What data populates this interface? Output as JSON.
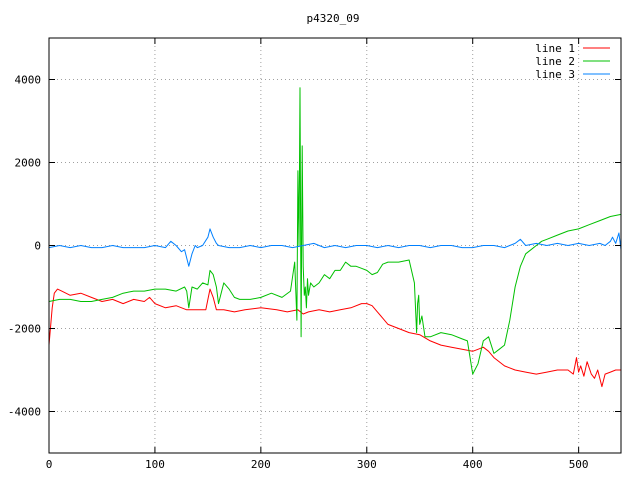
{
  "chart_data": {
    "type": "line",
    "title": "p4320_09",
    "xlabel": "",
    "ylabel": "",
    "xlim": [
      0,
      540
    ],
    "ylim": [
      -5000,
      5000
    ],
    "xticks": [
      0,
      100,
      200,
      300,
      400,
      500
    ],
    "yticks": [
      -4000,
      -2000,
      0,
      2000,
      4000
    ],
    "grid": true,
    "legend_position": "top-right",
    "series": [
      {
        "name": "line 1",
        "color": "#ff0000",
        "x": [
          0,
          3,
          5,
          8,
          12,
          20,
          30,
          40,
          50,
          60,
          70,
          80,
          90,
          95,
          100,
          110,
          120,
          130,
          140,
          148,
          150,
          152,
          155,
          158,
          165,
          175,
          185,
          200,
          215,
          225,
          235,
          240,
          245,
          255,
          265,
          275,
          285,
          295,
          300,
          305,
          310,
          320,
          330,
          340,
          350,
          360,
          370,
          380,
          390,
          400,
          405,
          410,
          415,
          420,
          430,
          440,
          450,
          460,
          470,
          480,
          490,
          495,
          498,
          500,
          502,
          505,
          508,
          512,
          515,
          518,
          522,
          525,
          530,
          535,
          540
        ],
        "y": [
          -2400,
          -1500,
          -1150,
          -1050,
          -1100,
          -1200,
          -1150,
          -1250,
          -1350,
          -1300,
          -1400,
          -1300,
          -1350,
          -1250,
          -1400,
          -1500,
          -1450,
          -1550,
          -1550,
          -1550,
          -1300,
          -1050,
          -1250,
          -1550,
          -1550,
          -1600,
          -1550,
          -1500,
          -1550,
          -1600,
          -1550,
          -1650,
          -1600,
          -1550,
          -1600,
          -1550,
          -1500,
          -1400,
          -1400,
          -1450,
          -1600,
          -1900,
          -2000,
          -2100,
          -2150,
          -2300,
          -2400,
          -2450,
          -2500,
          -2550,
          -2500,
          -2450,
          -2550,
          -2700,
          -2900,
          -3000,
          -3050,
          -3100,
          -3050,
          -3000,
          -3000,
          -3100,
          -2700,
          -3050,
          -2900,
          -3150,
          -2800,
          -3100,
          -3200,
          -3000,
          -3400,
          -3100,
          -3050,
          -3000,
          -3000
        ]
      },
      {
        "name": "line 2",
        "color": "#00c000",
        "x": [
          0,
          10,
          20,
          30,
          40,
          50,
          60,
          70,
          80,
          90,
          100,
          110,
          120,
          128,
          130,
          132,
          135,
          140,
          145,
          150,
          152,
          155,
          158,
          160,
          165,
          170,
          175,
          180,
          190,
          200,
          210,
          220,
          228,
          232,
          234,
          235,
          236,
          237,
          238,
          239,
          240,
          241,
          242,
          243,
          244,
          245,
          247,
          250,
          255,
          260,
          265,
          270,
          275,
          280,
          285,
          290,
          295,
          300,
          305,
          310,
          315,
          320,
          330,
          340,
          345,
          347,
          348,
          349,
          350,
          352,
          355,
          360,
          370,
          380,
          390,
          395,
          400,
          405,
          410,
          415,
          420,
          425,
          430,
          435,
          440,
          445,
          450,
          455,
          460,
          465,
          470,
          480,
          490,
          500,
          510,
          520,
          530,
          540
        ],
        "y": [
          -1350,
          -1300,
          -1300,
          -1350,
          -1350,
          -1300,
          -1250,
          -1150,
          -1100,
          -1100,
          -1050,
          -1050,
          -1100,
          -1000,
          -1100,
          -1500,
          -1000,
          -1050,
          -900,
          -950,
          -600,
          -700,
          -1000,
          -1400,
          -900,
          -1050,
          -1250,
          -1300,
          -1300,
          -1250,
          -1150,
          -1250,
          -1100,
          -400,
          -1800,
          1800,
          0,
          3800,
          -2200,
          2400,
          -500,
          -1200,
          -1000,
          -1500,
          -800,
          -1200,
          -900,
          -1000,
          -900,
          -700,
          -800,
          -600,
          -600,
          -400,
          -500,
          -500,
          -550,
          -600,
          -700,
          -650,
          -450,
          -400,
          -400,
          -350,
          -900,
          -2100,
          -1400,
          -1200,
          -1900,
          -1700,
          -2200,
          -2200,
          -2100,
          -2150,
          -2250,
          -2300,
          -3100,
          -2850,
          -2300,
          -2200,
          -2600,
          -2500,
          -2400,
          -1800,
          -1000,
          -500,
          -200,
          -100,
          0,
          100,
          150,
          250,
          350,
          400,
          500,
          600,
          700,
          750
        ]
      },
      {
        "name": "line 3",
        "color": "#0080ff",
        "x": [
          0,
          10,
          20,
          30,
          40,
          50,
          60,
          70,
          80,
          90,
          100,
          110,
          115,
          120,
          125,
          128,
          130,
          132,
          135,
          138,
          140,
          145,
          150,
          152,
          155,
          158,
          160,
          170,
          180,
          190,
          200,
          210,
          220,
          230,
          240,
          250,
          260,
          270,
          280,
          290,
          300,
          310,
          320,
          330,
          340,
          350,
          360,
          370,
          380,
          390,
          400,
          410,
          420,
          430,
          440,
          445,
          450,
          460,
          470,
          480,
          490,
          500,
          510,
          520,
          525,
          530,
          532,
          535,
          538,
          540
        ],
        "y": [
          -50,
          0,
          -50,
          0,
          -50,
          -50,
          0,
          -50,
          -50,
          -50,
          0,
          -50,
          100,
          0,
          -150,
          -100,
          -300,
          -500,
          -200,
          0,
          -50,
          0,
          200,
          400,
          200,
          50,
          0,
          -50,
          -50,
          0,
          -50,
          0,
          0,
          -50,
          0,
          50,
          -50,
          0,
          -50,
          0,
          0,
          -50,
          0,
          -50,
          0,
          0,
          -50,
          0,
          0,
          -50,
          -50,
          0,
          0,
          -50,
          50,
          150,
          0,
          50,
          0,
          50,
          0,
          50,
          0,
          50,
          0,
          100,
          200,
          50,
          300,
          -100
        ]
      }
    ]
  }
}
